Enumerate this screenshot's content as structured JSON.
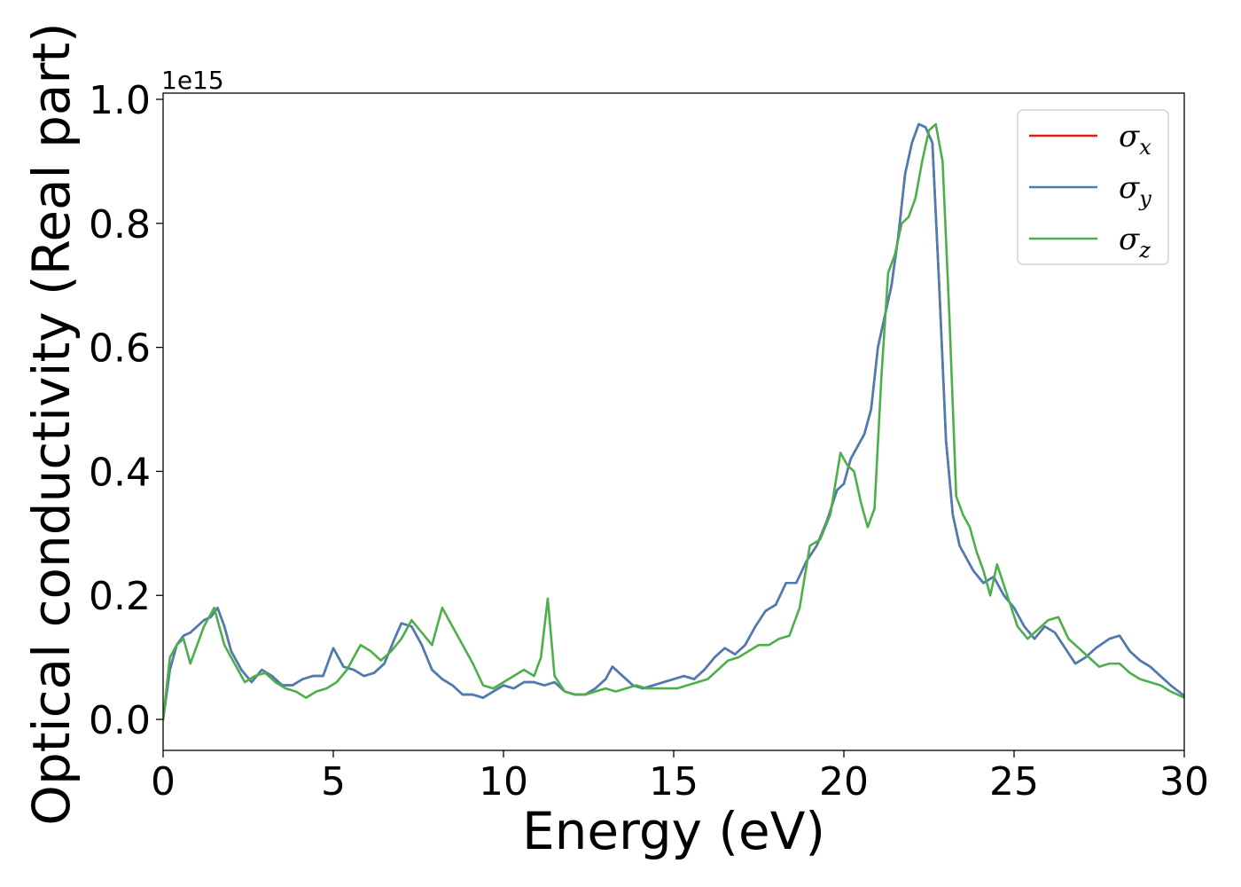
{
  "chart_data": {
    "type": "line",
    "title": "",
    "xlabel": "Energy (eV)",
    "ylabel": "Optical conductivity (Real part)",
    "y_offset_label": "1e15",
    "xlim": [
      0,
      30
    ],
    "ylim": [
      -0.05,
      1.01
    ],
    "y_scale": 1000000000000000.0,
    "x_ticks": [
      0,
      5,
      10,
      15,
      20,
      25,
      30
    ],
    "x_tick_labels": [
      "0",
      "5",
      "10",
      "15",
      "20",
      "25",
      "30"
    ],
    "y_ticks": [
      0.0,
      0.2,
      0.4,
      0.6,
      0.8,
      1.0
    ],
    "y_tick_labels": [
      "0.0",
      "0.2",
      "0.4",
      "0.6",
      "0.8",
      "1.0"
    ],
    "grid": false,
    "legend": {
      "position": "top-right",
      "entries": [
        {
          "base": "σ",
          "sub": "x"
        },
        {
          "base": "σ",
          "sub": "y"
        },
        {
          "base": "σ",
          "sub": "z"
        }
      ]
    },
    "series": [
      {
        "name": "σx",
        "color": "#e41a1c",
        "x": [
          0,
          0.2,
          0.4,
          0.6,
          0.8,
          1.0,
          1.2,
          1.4,
          1.6,
          1.8,
          2.0,
          2.3,
          2.6,
          2.9,
          3.2,
          3.5,
          3.8,
          4.1,
          4.4,
          4.7,
          5.0,
          5.3,
          5.6,
          5.9,
          6.2,
          6.5,
          6.8,
          7.0,
          7.3,
          7.6,
          7.9,
          8.2,
          8.5,
          8.8,
          9.1,
          9.4,
          9.7,
          10.0,
          10.3,
          10.6,
          10.9,
          11.2,
          11.5,
          11.8,
          12.1,
          12.4,
          12.7,
          13.0,
          13.2,
          13.5,
          13.8,
          14.1,
          14.4,
          14.7,
          15.0,
          15.3,
          15.6,
          15.9,
          16.2,
          16.5,
          16.8,
          17.1,
          17.4,
          17.7,
          18.0,
          18.3,
          18.6,
          18.9,
          19.2,
          19.5,
          19.8,
          20.0,
          20.2,
          20.4,
          20.6,
          20.8,
          21.0,
          21.2,
          21.4,
          21.6,
          21.8,
          22.0,
          22.2,
          22.4,
          22.6,
          22.8,
          23.0,
          23.2,
          23.4,
          23.6,
          23.8,
          24.1,
          24.4,
          24.7,
          25.0,
          25.3,
          25.6,
          25.9,
          26.2,
          26.5,
          26.8,
          27.1,
          27.4,
          27.8,
          28.1,
          28.4,
          28.7,
          29.0,
          29.3,
          29.6,
          30.0
        ],
        "y": [
          0,
          0.08,
          0.12,
          0.135,
          0.14,
          0.15,
          0.16,
          0.165,
          0.18,
          0.15,
          0.11,
          0.08,
          0.06,
          0.08,
          0.07,
          0.055,
          0.055,
          0.065,
          0.07,
          0.07,
          0.115,
          0.085,
          0.08,
          0.07,
          0.075,
          0.09,
          0.13,
          0.155,
          0.15,
          0.12,
          0.08,
          0.065,
          0.055,
          0.04,
          0.04,
          0.035,
          0.045,
          0.055,
          0.05,
          0.06,
          0.06,
          0.055,
          0.06,
          0.045,
          0.04,
          0.04,
          0.05,
          0.065,
          0.085,
          0.07,
          0.055,
          0.05,
          0.055,
          0.06,
          0.065,
          0.07,
          0.065,
          0.08,
          0.1,
          0.115,
          0.105,
          0.12,
          0.15,
          0.175,
          0.185,
          0.22,
          0.22,
          0.255,
          0.28,
          0.32,
          0.37,
          0.38,
          0.42,
          0.44,
          0.46,
          0.5,
          0.6,
          0.65,
          0.7,
          0.78,
          0.88,
          0.93,
          0.96,
          0.955,
          0.93,
          0.7,
          0.45,
          0.33,
          0.28,
          0.26,
          0.24,
          0.22,
          0.23,
          0.2,
          0.18,
          0.15,
          0.13,
          0.15,
          0.14,
          0.115,
          0.09,
          0.1,
          0.115,
          0.13,
          0.135,
          0.11,
          0.095,
          0.085,
          0.07,
          0.055,
          0.038
        ]
      },
      {
        "name": "σy",
        "color": "#4a7db4",
        "x": [
          0,
          0.2,
          0.4,
          0.6,
          0.8,
          1.0,
          1.2,
          1.4,
          1.6,
          1.8,
          2.0,
          2.3,
          2.6,
          2.9,
          3.2,
          3.5,
          3.8,
          4.1,
          4.4,
          4.7,
          5.0,
          5.3,
          5.6,
          5.9,
          6.2,
          6.5,
          6.8,
          7.0,
          7.3,
          7.6,
          7.9,
          8.2,
          8.5,
          8.8,
          9.1,
          9.4,
          9.7,
          10.0,
          10.3,
          10.6,
          10.9,
          11.2,
          11.5,
          11.8,
          12.1,
          12.4,
          12.7,
          13.0,
          13.2,
          13.5,
          13.8,
          14.1,
          14.4,
          14.7,
          15.0,
          15.3,
          15.6,
          15.9,
          16.2,
          16.5,
          16.8,
          17.1,
          17.4,
          17.7,
          18.0,
          18.3,
          18.6,
          18.9,
          19.2,
          19.5,
          19.8,
          20.0,
          20.2,
          20.4,
          20.6,
          20.8,
          21.0,
          21.2,
          21.4,
          21.6,
          21.8,
          22.0,
          22.2,
          22.4,
          22.6,
          22.8,
          23.0,
          23.2,
          23.4,
          23.6,
          23.8,
          24.1,
          24.4,
          24.7,
          25.0,
          25.3,
          25.6,
          25.9,
          26.2,
          26.5,
          26.8,
          27.1,
          27.4,
          27.8,
          28.1,
          28.4,
          28.7,
          29.0,
          29.3,
          29.6,
          30.0
        ],
        "y": [
          0,
          0.08,
          0.12,
          0.135,
          0.14,
          0.15,
          0.16,
          0.165,
          0.18,
          0.15,
          0.11,
          0.08,
          0.06,
          0.08,
          0.07,
          0.055,
          0.055,
          0.065,
          0.07,
          0.07,
          0.115,
          0.085,
          0.08,
          0.07,
          0.075,
          0.09,
          0.13,
          0.155,
          0.15,
          0.12,
          0.08,
          0.065,
          0.055,
          0.04,
          0.04,
          0.035,
          0.045,
          0.055,
          0.05,
          0.06,
          0.06,
          0.055,
          0.06,
          0.045,
          0.04,
          0.04,
          0.05,
          0.065,
          0.085,
          0.07,
          0.055,
          0.05,
          0.055,
          0.06,
          0.065,
          0.07,
          0.065,
          0.08,
          0.1,
          0.115,
          0.105,
          0.12,
          0.15,
          0.175,
          0.185,
          0.22,
          0.22,
          0.255,
          0.28,
          0.32,
          0.37,
          0.38,
          0.42,
          0.44,
          0.46,
          0.5,
          0.6,
          0.65,
          0.7,
          0.78,
          0.88,
          0.93,
          0.96,
          0.955,
          0.93,
          0.7,
          0.45,
          0.33,
          0.28,
          0.26,
          0.24,
          0.22,
          0.23,
          0.2,
          0.18,
          0.15,
          0.13,
          0.15,
          0.14,
          0.115,
          0.09,
          0.1,
          0.115,
          0.13,
          0.135,
          0.11,
          0.095,
          0.085,
          0.07,
          0.055,
          0.038
        ]
      },
      {
        "name": "σz",
        "color": "#4daf4a",
        "x": [
          0,
          0.2,
          0.4,
          0.6,
          0.8,
          1.0,
          1.2,
          1.5,
          1.8,
          2.1,
          2.4,
          2.7,
          3.0,
          3.3,
          3.6,
          3.9,
          4.2,
          4.5,
          4.8,
          5.1,
          5.4,
          5.8,
          6.1,
          6.4,
          6.7,
          7.0,
          7.3,
          7.6,
          7.9,
          8.2,
          8.5,
          8.8,
          9.1,
          9.4,
          9.7,
          10.0,
          10.3,
          10.6,
          10.9,
          11.1,
          11.3,
          11.5,
          11.8,
          12.1,
          12.4,
          12.7,
          13.0,
          13.3,
          13.6,
          13.9,
          14.2,
          14.5,
          14.8,
          15.1,
          15.4,
          15.7,
          16.0,
          16.3,
          16.6,
          16.9,
          17.2,
          17.5,
          17.8,
          18.1,
          18.4,
          18.7,
          19.0,
          19.3,
          19.6,
          19.9,
          20.1,
          20.3,
          20.5,
          20.7,
          20.9,
          21.1,
          21.3,
          21.5,
          21.7,
          21.9,
          22.1,
          22.3,
          22.5,
          22.7,
          22.9,
          23.1,
          23.3,
          23.5,
          23.7,
          23.9,
          24.1,
          24.3,
          24.5,
          24.8,
          25.1,
          25.4,
          25.7,
          26.0,
          26.3,
          26.6,
          26.9,
          27.2,
          27.5,
          27.8,
          28.1,
          28.4,
          28.7,
          29.0,
          29.3,
          29.6,
          30.0
        ],
        "y": [
          0,
          0.1,
          0.12,
          0.13,
          0.09,
          0.12,
          0.15,
          0.18,
          0.12,
          0.09,
          0.06,
          0.07,
          0.075,
          0.06,
          0.05,
          0.045,
          0.035,
          0.045,
          0.05,
          0.06,
          0.08,
          0.12,
          0.11,
          0.095,
          0.11,
          0.13,
          0.16,
          0.14,
          0.12,
          0.18,
          0.15,
          0.12,
          0.09,
          0.055,
          0.05,
          0.06,
          0.07,
          0.08,
          0.07,
          0.1,
          0.195,
          0.07,
          0.045,
          0.04,
          0.04,
          0.045,
          0.05,
          0.045,
          0.05,
          0.055,
          0.05,
          0.05,
          0.05,
          0.05,
          0.055,
          0.06,
          0.065,
          0.08,
          0.095,
          0.1,
          0.11,
          0.12,
          0.12,
          0.13,
          0.135,
          0.18,
          0.28,
          0.29,
          0.33,
          0.43,
          0.41,
          0.4,
          0.35,
          0.31,
          0.34,
          0.55,
          0.72,
          0.75,
          0.8,
          0.81,
          0.84,
          0.9,
          0.95,
          0.96,
          0.9,
          0.65,
          0.36,
          0.33,
          0.31,
          0.27,
          0.24,
          0.2,
          0.25,
          0.2,
          0.15,
          0.13,
          0.145,
          0.16,
          0.165,
          0.13,
          0.115,
          0.1,
          0.085,
          0.09,
          0.09,
          0.075,
          0.065,
          0.06,
          0.055,
          0.045,
          0.035
        ]
      }
    ]
  }
}
